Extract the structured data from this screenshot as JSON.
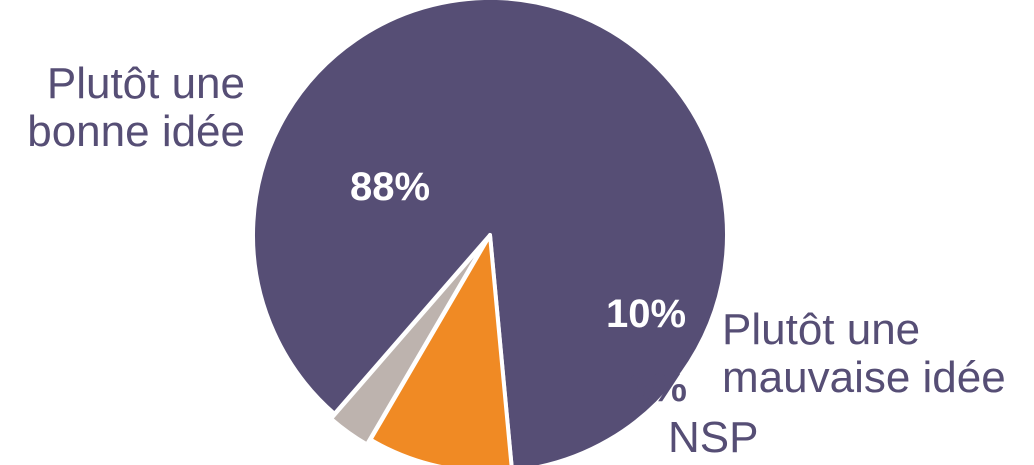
{
  "chart_data": {
    "type": "pie",
    "title": "",
    "slices": [
      {
        "label_lines": [
          "Plutôt une",
          "bonne idée"
        ],
        "value": 88,
        "value_label": "88%",
        "color": "#564e75",
        "value_label_color": "#ffffff"
      },
      {
        "label_lines": [
          "Plutôt une",
          "mauvaise idée"
        ],
        "value": 10,
        "value_label": "10%",
        "color": "#f08a24",
        "value_label_color": "#ffffff"
      },
      {
        "label_lines": [
          "NSP"
        ],
        "value": 3,
        "value_label": "3%",
        "color": "#bdb3ae",
        "value_label_color": "#564e75"
      }
    ],
    "label_color": "#564e75",
    "border_color": "#ffffff"
  }
}
